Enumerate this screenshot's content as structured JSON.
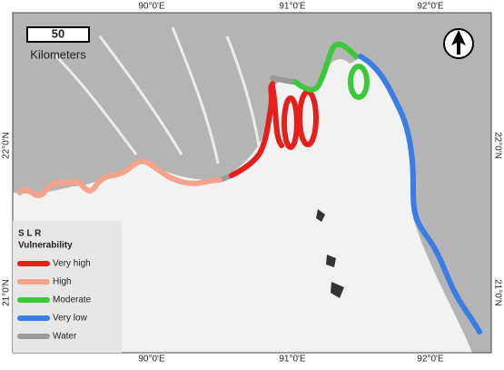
{
  "map": {
    "top_labels": [
      "90°0'E",
      "91°0'E",
      "92°0'E"
    ],
    "bottom_labels": [
      "90°0'E",
      "91°0'E",
      "92°0'E"
    ],
    "left_labels": [
      "22°0'N",
      "21°0'N"
    ],
    "right_labels": [
      "22°0'N",
      "21°0'N"
    ],
    "scale_bar": {
      "value": "50",
      "unit": "Kilometers"
    },
    "legend": {
      "title_lines": [
        "S L R",
        "Vulnerability"
      ],
      "items": [
        {
          "label": "Very high",
          "color": "#e3201c"
        },
        {
          "label": "High",
          "color": "#f4a48a"
        },
        {
          "label": "Moderate",
          "color": "#3dc83a"
        },
        {
          "label": "Very low",
          "color": "#3a7de4"
        },
        {
          "label": "Water",
          "color": "#9a9a9a"
        }
      ]
    }
  }
}
